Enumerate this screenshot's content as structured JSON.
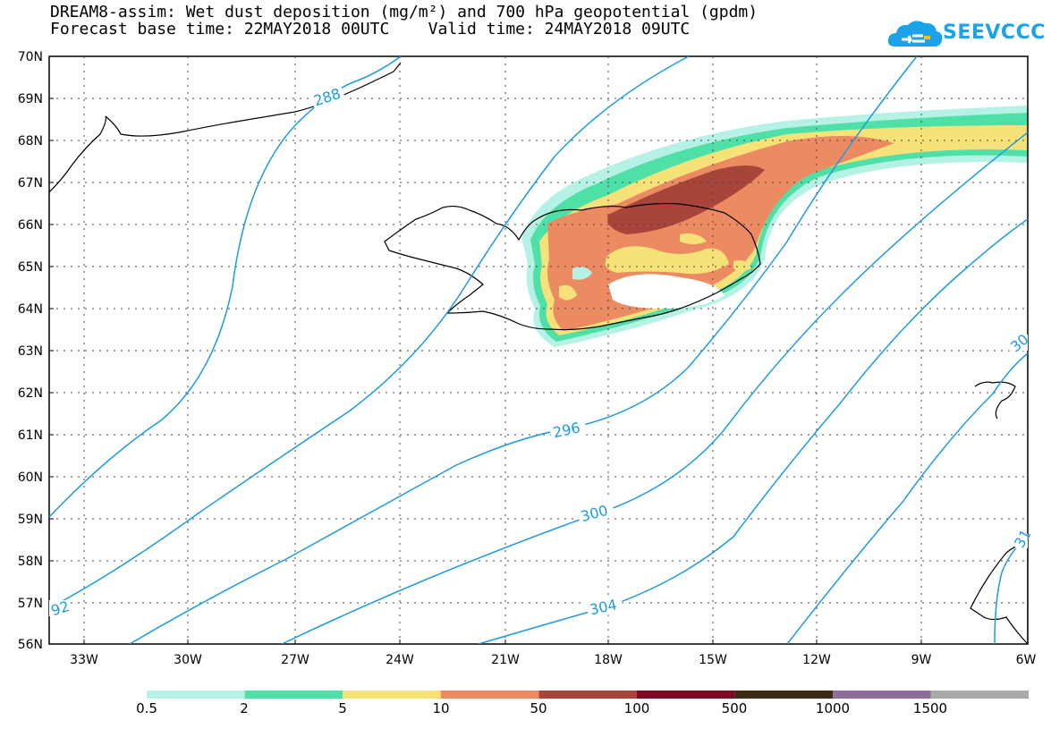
{
  "title": {
    "line1": "DREAM8-assim: Wet dust deposition (mg/m²) and 700 hPa geopotential (gpdm)",
    "line2": "Forecast base time: 22MAY2018 00UTC    Valid time: 24MAY2018 09UTC"
  },
  "logo": {
    "text": "SEEVCCC"
  },
  "map": {
    "lat_range": [
      56,
      70
    ],
    "lon_range": [
      -34.5,
      -6
    ],
    "lat_labels": [
      "70N",
      "69N",
      "68N",
      "67N",
      "66N",
      "65N",
      "64N",
      "63N",
      "62N",
      "61N",
      "60N",
      "59N",
      "58N",
      "57N",
      "56N"
    ],
    "lon_labels": [
      "33W",
      "30W",
      "27W",
      "24W",
      "21W",
      "18W",
      "15W",
      "12W",
      "9W",
      "6W"
    ],
    "contour_color": "#1c9be0",
    "contour_labels": [
      "288",
      "296",
      "300",
      "304",
      "92",
      "30",
      "31"
    ]
  },
  "legend": {
    "labels": [
      "0.5",
      "2",
      "5",
      "10",
      "50",
      "100",
      "500",
      "1000",
      "1500"
    ],
    "colors": [
      "#b6f1e6",
      "#4fe0a8",
      "#f7e27a",
      "#ec8a62",
      "#a8453b",
      "#7d0a23",
      "#3e2a14",
      "#8f6b9e",
      "#a9a9a9"
    ]
  }
}
